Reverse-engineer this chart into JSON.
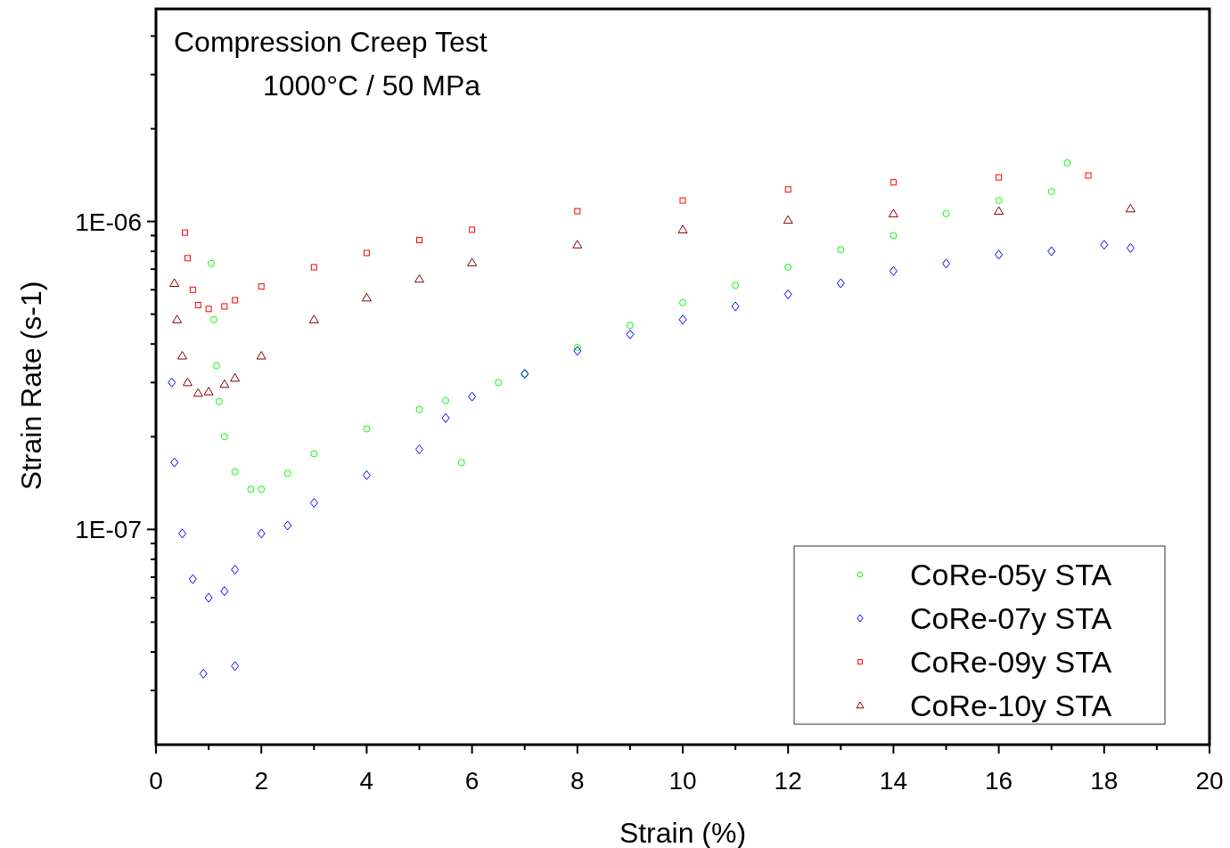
{
  "chart_data": {
    "type": "scatter",
    "title": "Compression Creep Test",
    "subtitle": "1000°C / 50 MPa",
    "xlabel": "Strain (%)",
    "ylabel": "Strain Rate (s-1)",
    "log": "y",
    "grid": false,
    "legend": "bottom right",
    "xlim": [
      0,
      20
    ],
    "xticks": [
      0,
      {
        "value": 1,
        "label": null
      },
      2,
      {
        "value": 3,
        "label": null
      },
      4,
      {
        "value": 5,
        "label": null
      },
      6,
      {
        "value": 7,
        "label": null
      },
      8,
      {
        "value": 9,
        "label": null
      },
      10,
      {
        "value": 11,
        "label": null
      },
      12,
      {
        "value": 13,
        "label": null
      },
      14,
      {
        "value": 15,
        "label": null
      },
      16,
      {
        "value": 17,
        "label": null
      },
      18,
      {
        "value": 19,
        "label": null
      },
      20
    ],
    "ylim": [
      2e-08,
      4.9e-06
    ],
    "yticks": [
      {
        "value": 3e-08,
        "label": null
      },
      {
        "value": 4e-08,
        "label": null
      },
      {
        "value": 5e-08,
        "label": null
      },
      {
        "value": 6e-08,
        "label": null
      },
      {
        "value": 7e-08,
        "label": null
      },
      {
        "value": 8e-08,
        "label": null
      },
      {
        "value": 9e-08,
        "label": null
      },
      {
        "value": 1e-07,
        "label": "1E-07"
      },
      {
        "value": 2e-07,
        "label": null
      },
      {
        "value": 3e-07,
        "label": null
      },
      {
        "value": 4e-07,
        "label": null
      },
      {
        "value": 5e-07,
        "label": null
      },
      {
        "value": 6e-07,
        "label": null
      },
      {
        "value": 7e-07,
        "label": null
      },
      {
        "value": 8e-07,
        "label": null
      },
      {
        "value": 9e-07,
        "label": null
      },
      {
        "value": 1e-06,
        "label": "1E-06"
      },
      {
        "value": 2e-06,
        "label": null
      },
      {
        "value": 3e-06,
        "label": null
      },
      {
        "value": 4e-06,
        "label": null
      }
    ],
    "series": [
      {
        "name": "CoRe-05y STA",
        "color": "#00ff00",
        "marker": "circle",
        "x": [
          1.05,
          1.1,
          1.15,
          1.2,
          1.3,
          1.5,
          1.8,
          2,
          2.5,
          3,
          4,
          5,
          5.5,
          5.8,
          6.5,
          7,
          8,
          9,
          10,
          11,
          12,
          13,
          14,
          15,
          16,
          17,
          17.3
        ],
        "values": [
          7.3e-07,
          4.8e-07,
          3.4e-07,
          2.6e-07,
          2e-07,
          1.54e-07,
          1.35e-07,
          1.35e-07,
          1.52e-07,
          1.76e-07,
          2.12e-07,
          2.45e-07,
          2.62e-07,
          1.65e-07,
          3e-07,
          3.2e-07,
          3.9e-07,
          4.6e-07,
          5.45e-07,
          6.2e-07,
          7.1e-07,
          8.1e-07,
          9e-07,
          1.06e-06,
          1.17e-06,
          1.25e-06,
          1.55e-06
        ]
      },
      {
        "name": "CoRe-07y STA",
        "color": "#0000ff",
        "marker": "diamond",
        "x": [
          0.3,
          0.35,
          0.5,
          0.7,
          0.9,
          1.0,
          1.3,
          1.5,
          1.5,
          2,
          2.5,
          3,
          4,
          5,
          5.5,
          6,
          7,
          8,
          9,
          10,
          11,
          12,
          13,
          14,
          15,
          16,
          17,
          18,
          18.5
        ],
        "values": [
          3e-07,
          1.65e-07,
          9.7e-08,
          6.9e-08,
          3.4e-08,
          6e-08,
          6.3e-08,
          3.6e-08,
          7.4e-08,
          9.7e-08,
          1.03e-07,
          1.22e-07,
          1.5e-07,
          1.82e-07,
          2.3e-07,
          2.7e-07,
          3.2e-07,
          3.8e-07,
          4.3e-07,
          4.8e-07,
          5.3e-07,
          5.8e-07,
          6.3e-07,
          6.9e-07,
          7.3e-07,
          7.8e-07,
          8e-07,
          8.4e-07,
          8.2e-07
        ]
      },
      {
        "name": "CoRe-09y STA",
        "color": "#ff0000",
        "marker": "square",
        "x": [
          0.55,
          0.6,
          0.7,
          0.8,
          1.0,
          1.3,
          1.5,
          2,
          3,
          4,
          5,
          6,
          8,
          10,
          12,
          14,
          16,
          17.7
        ],
        "values": [
          9.2e-07,
          7.6e-07,
          6e-07,
          5.35e-07,
          5.2e-07,
          5.3e-07,
          5.55e-07,
          6.15e-07,
          7.1e-07,
          7.9e-07,
          8.7e-07,
          9.4e-07,
          1.08e-06,
          1.17e-06,
          1.27e-06,
          1.34e-06,
          1.39e-06,
          1.41e-06
        ]
      },
      {
        "name": "CoRe-10y STA",
        "color": "#800000",
        "marker": "triangle",
        "x": [
          0.35,
          0.4,
          0.5,
          0.6,
          0.8,
          1.0,
          1.3,
          1.5,
          2,
          3,
          4,
          5,
          6,
          8,
          10,
          12,
          14,
          16,
          18.5
        ],
        "values": [
          6.3e-07,
          4.8e-07,
          3.66e-07,
          3e-07,
          2.77e-07,
          2.8e-07,
          2.96e-07,
          3.1e-07,
          3.66e-07,
          4.8e-07,
          5.65e-07,
          6.5e-07,
          7.35e-07,
          8.4e-07,
          9.4e-07,
          1.01e-06,
          1.06e-06,
          1.08e-06,
          1.1e-06
        ]
      }
    ]
  }
}
